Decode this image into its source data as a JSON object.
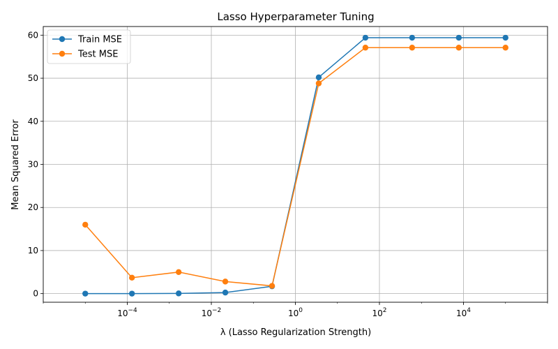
{
  "chart_data": {
    "type": "line",
    "title": "Lasso Hyperparameter Tuning",
    "xlabel": "λ (Lasso Regularization Strength)",
    "ylabel": "Mean Squared Error",
    "xscale": "log",
    "xlim": [
      1e-06,
      1000000.0
    ],
    "ylim": [
      -2,
      62
    ],
    "x": [
      1e-05,
      0.000129,
      0.00167,
      0.0215,
      0.278,
      3.59,
      46.4,
      599,
      7740,
      100000
    ],
    "xticks": [
      {
        "value": 0.0001,
        "base": "10",
        "exp": "−4"
      },
      {
        "value": 0.01,
        "base": "10",
        "exp": "−2"
      },
      {
        "value": 1,
        "base": "10",
        "exp": "0"
      },
      {
        "value": 100,
        "base": "10",
        "exp": "2"
      },
      {
        "value": 10000,
        "base": "10",
        "exp": "4"
      }
    ],
    "yticks": [
      0,
      10,
      20,
      30,
      40,
      50,
      60
    ],
    "grid": true,
    "legend_position": "top-left",
    "series": [
      {
        "name": "Train MSE",
        "color": "#1f77b4",
        "values": [
          0.0,
          0.0,
          0.05,
          0.25,
          1.7,
          50.2,
          59.4,
          59.4,
          59.4,
          59.4
        ]
      },
      {
        "name": "Test MSE",
        "color": "#ff7f0e",
        "values": [
          16.0,
          3.7,
          5.0,
          2.8,
          1.8,
          48.8,
          57.1,
          57.1,
          57.1,
          57.1
        ]
      }
    ]
  }
}
